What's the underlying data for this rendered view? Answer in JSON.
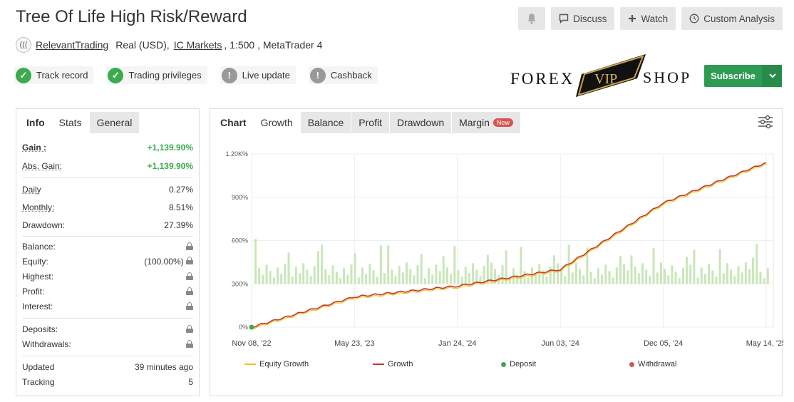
{
  "header": {
    "title": "Tree Of Life High Risk/Reward",
    "bell_icon": "bell-icon",
    "discuss": "Discuss",
    "watch": "Watch",
    "custom_analysis": "Custom Analysis"
  },
  "account": {
    "logo_text": "((( ",
    "owner": "RelevantTrading",
    "account_type": "Real (USD),",
    "broker": "IC Markets",
    "details": ", 1:500 , MetaTrader 4"
  },
  "badges": [
    {
      "label": "Track record",
      "status": "ok"
    },
    {
      "label": "Trading privileges",
      "status": "ok"
    },
    {
      "label": "Live update",
      "status": "no"
    },
    {
      "label": "Cashback",
      "status": "no"
    }
  ],
  "brand": {
    "left": "FOREX",
    "mid": "VIP",
    "right": "SHOP"
  },
  "subscribe": {
    "label": "Subscribe"
  },
  "left_tabs": [
    "Info",
    "Stats",
    "General"
  ],
  "stats": {
    "gain_label": "Gain :",
    "gain": "+1,139.90%",
    "abs_gain_label": "Abs. Gain:",
    "abs_gain": "+1,139.90%",
    "daily_label": "Daily",
    "daily": "0.27%",
    "monthly_label": "Monthly:",
    "monthly": "8.51%",
    "drawdown_label": "Drawdown:",
    "drawdown": "27.39%",
    "balance_label": "Balance:",
    "equity_label": "Equity:",
    "equity_pct": "(100.00%)",
    "highest_label": "Highest:",
    "profit_label": "Profit:",
    "interest_label": "Interest:",
    "deposits_label": "Deposits:",
    "withdrawals_label": "Withdrawals:",
    "updated_label": "Updated",
    "updated": "39 minutes ago",
    "tracking_label": "Tracking",
    "tracking": "5"
  },
  "chart_tabs": {
    "chart": "Chart",
    "growth": "Growth",
    "balance": "Balance",
    "profit": "Profit",
    "drawdown": "Drawdown",
    "margin": "Margin",
    "new_badge": "New"
  },
  "chart_data": {
    "type": "line",
    "y_ticks": [
      "0%",
      "300%",
      "600%",
      "900%",
      "1.20K%"
    ],
    "ylim": [
      0,
      1200
    ],
    "x_ticks": [
      "Nov 08, '22",
      "May 23, '23",
      "Jan 24, '24",
      "Jun 03, '24",
      "Dec 05, '24",
      "May 14, '25"
    ],
    "series": [
      {
        "name": "Equity Growth",
        "color": "#f0c419"
      },
      {
        "name": "Growth",
        "color": "#c0392b",
        "x": [
          "Nov 08, '22",
          "May 23, '23",
          "Jan 24, '24",
          "Jun 03, '24",
          "Dec 05, '24",
          "May 14, '25"
        ],
        "values": [
          0,
          210,
          285,
          400,
          860,
          1140
        ]
      },
      {
        "name": "Deposit",
        "color": "#3bab4e"
      },
      {
        "name": "Withdrawal",
        "color": "#d9534f"
      }
    ],
    "grid": true
  }
}
